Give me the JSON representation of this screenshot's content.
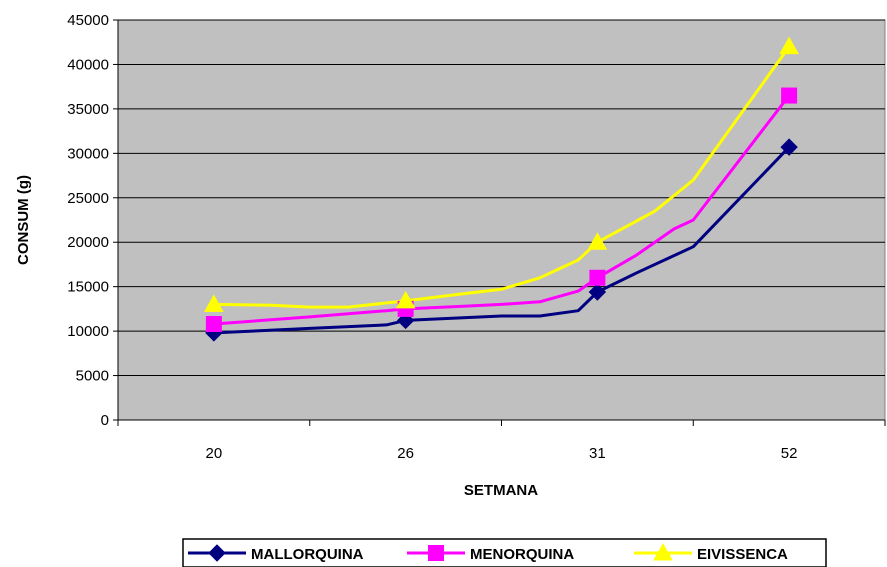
{
  "chart_data": {
    "type": "line",
    "xlabel": "SETMANA",
    "ylabel": "CONSUM (g)",
    "categories": [
      "20",
      "26",
      "31",
      "52"
    ],
    "ylim": [
      0,
      45000
    ],
    "yticks": [
      0,
      5000,
      10000,
      15000,
      20000,
      25000,
      30000,
      35000,
      40000,
      45000
    ],
    "grid": true,
    "legend_position": "bottom",
    "plot_background": "#c0c0c0",
    "series": [
      {
        "name": "MALLORQUINA",
        "color": "#000080",
        "marker": "diamond",
        "values": [
          9800,
          11200,
          14400,
          30700
        ],
        "curve": [
          [
            0,
            9800
          ],
          [
            0.5,
            10300
          ],
          [
            0.9,
            10700
          ],
          [
            1,
            11200
          ],
          [
            1.3,
            11500
          ],
          [
            1.5,
            11700
          ],
          [
            1.7,
            11700
          ],
          [
            1.9,
            12300
          ],
          [
            2,
            14400
          ],
          [
            2.2,
            16500
          ],
          [
            2.5,
            19500
          ],
          [
            3,
            30700
          ]
        ]
      },
      {
        "name": "MENORQUINA",
        "color": "#ff00ff",
        "marker": "square",
        "values": [
          10800,
          12500,
          16000,
          36500
        ],
        "curve": [
          [
            0,
            10800
          ],
          [
            0.5,
            11600
          ],
          [
            0.9,
            12300
          ],
          [
            1,
            12500
          ],
          [
            1.3,
            12800
          ],
          [
            1.5,
            13000
          ],
          [
            1.7,
            13300
          ],
          [
            1.9,
            14500
          ],
          [
            2,
            16000
          ],
          [
            2.2,
            18500
          ],
          [
            2.4,
            21500
          ],
          [
            2.5,
            22500
          ],
          [
            3,
            36500
          ]
        ]
      },
      {
        "name": "EIVISSENCA",
        "color": "#ffff00",
        "marker": "triangle",
        "values": [
          13000,
          13400,
          20000,
          42000
        ],
        "curve": [
          [
            0,
            13000
          ],
          [
            0.3,
            12900
          ],
          [
            0.5,
            12700
          ],
          [
            0.7,
            12700
          ],
          [
            1,
            13400
          ],
          [
            1.3,
            14200
          ],
          [
            1.5,
            14700
          ],
          [
            1.7,
            16000
          ],
          [
            1.9,
            18000
          ],
          [
            2,
            20000
          ],
          [
            2.3,
            23500
          ],
          [
            2.5,
            27000
          ],
          [
            3,
            42000
          ]
        ]
      }
    ]
  }
}
